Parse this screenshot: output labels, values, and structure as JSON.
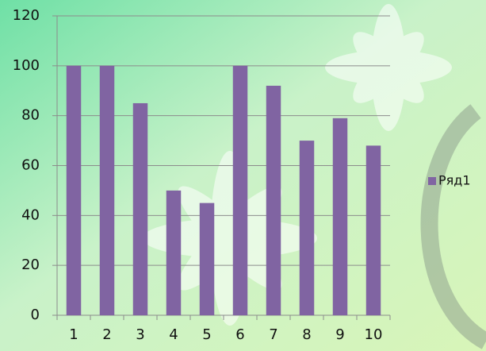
{
  "chart_data": {
    "type": "bar",
    "categories": [
      "1",
      "2",
      "3",
      "4",
      "5",
      "6",
      "7",
      "8",
      "9",
      "10"
    ],
    "series": [
      {
        "name": "Ряд1",
        "color": "#8064a2",
        "values": [
          100,
          100,
          85,
          50,
          45,
          100,
          92,
          70,
          79,
          68
        ]
      }
    ],
    "ylim": [
      0,
      120
    ],
    "yticks": [
      0,
      20,
      40,
      60,
      80,
      100,
      120
    ],
    "grid": true,
    "legend": "right"
  }
}
